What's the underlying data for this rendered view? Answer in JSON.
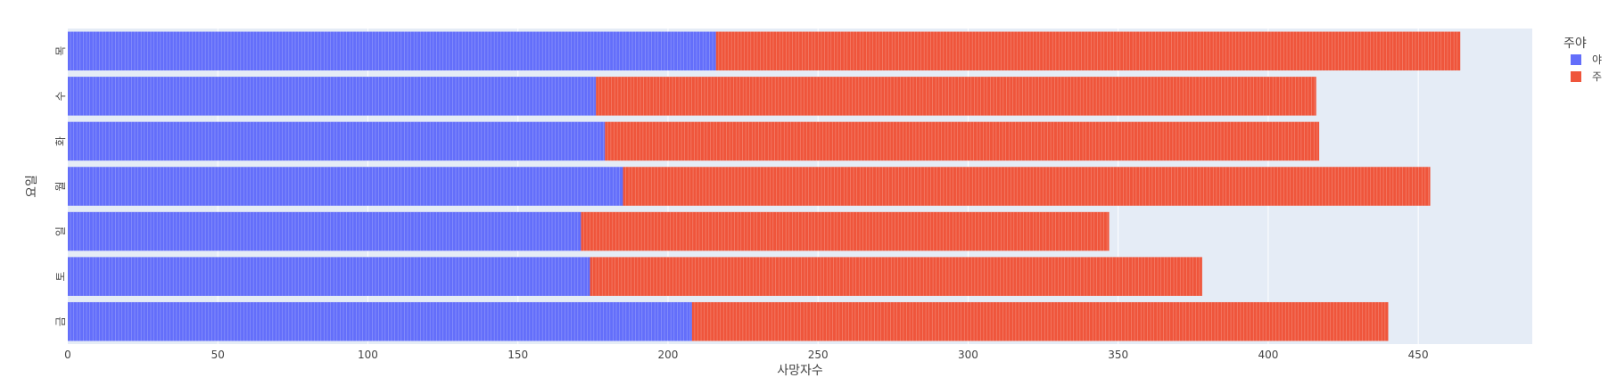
{
  "chart_data": {
    "type": "bar",
    "orientation": "horizontal",
    "barmode": "stack",
    "title": "",
    "xlabel": "사망자수",
    "ylabel": "요일",
    "xlim": [
      0,
      488
    ],
    "xticks": [
      0,
      50,
      100,
      150,
      200,
      250,
      300,
      350,
      400,
      450
    ],
    "categories": [
      "목",
      "수",
      "화",
      "월",
      "일",
      "토",
      "금"
    ],
    "series": [
      {
        "name": "야",
        "color": "#636efa",
        "values": [
          216,
          176,
          179,
          185,
          171,
          174,
          208
        ]
      },
      {
        "name": "주",
        "color": "#ef553b",
        "values": [
          248,
          240,
          238,
          269,
          176,
          204,
          232
        ]
      }
    ],
    "legend": {
      "title": "주야",
      "position": "top-right"
    },
    "grid": true,
    "background": "#e5ecf6"
  }
}
